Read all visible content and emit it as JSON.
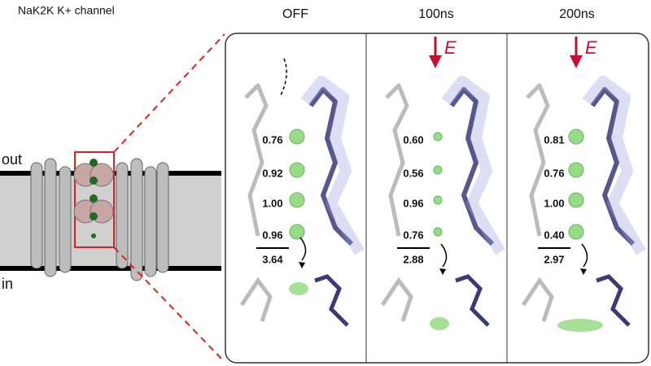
{
  "header": {
    "title": "NaK2K K+ channel"
  },
  "membrane": {
    "out": "out",
    "in": "in"
  },
  "panels": [
    {
      "label": "OFF",
      "occupancies": [
        "0.76",
        "0.92",
        "1.00",
        "0.96"
      ],
      "total": "3.64"
    },
    {
      "label": "100ns",
      "field": "E",
      "occupancies": [
        "0.60",
        "0.56",
        "0.96",
        "0.76"
      ],
      "total": "2.88"
    },
    {
      "label": "200ns",
      "field": "E",
      "occupancies": [
        "0.81",
        "0.76",
        "1.00",
        "0.40"
      ],
      "total": "2.97"
    }
  ]
}
